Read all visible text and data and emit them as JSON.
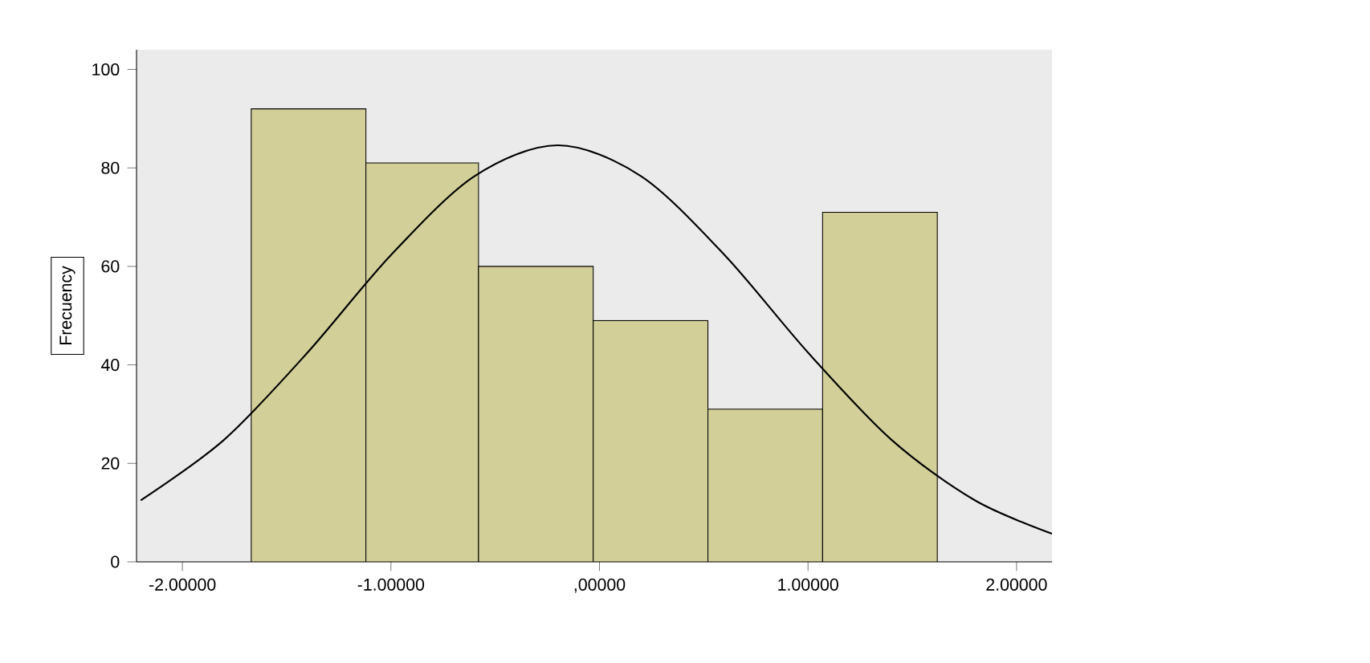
{
  "chart_data": {
    "type": "histogram",
    "ylabel": "Frecuency",
    "bins": [
      -1.67,
      -1.12,
      -0.58,
      -0.03,
      0.52,
      1.07,
      1.62
    ],
    "values": [
      92,
      81,
      60,
      49,
      31,
      71
    ],
    "color": "#d3cf98",
    "xlim": [
      -2.22,
      2.17
    ],
    "ylim": [
      0,
      104
    ],
    "xticks": [
      {
        "value": -2,
        "label": "-2.00000"
      },
      {
        "value": -1,
        "label": "-1.00000"
      },
      {
        "value": 0,
        "label": ",00000"
      },
      {
        "value": 1,
        "label": "1.00000"
      },
      {
        "value": 2,
        "label": "2.00000"
      }
    ],
    "yticks": [
      0,
      20,
      40,
      60,
      80,
      100
    ],
    "grid": false,
    "series": [
      {
        "type": "line",
        "color": "#000000",
        "x": [
          -2.2,
          -1.8,
          -1.4,
          -1.0,
          -0.6,
          -0.2,
          0.2,
          0.6,
          1.0,
          1.4,
          1.8,
          2.17
        ],
        "values": [
          12.5,
          24.8,
          42.5,
          62.3,
          78.3,
          84.6,
          78.3,
          62.3,
          42.5,
          24.8,
          12.5,
          5.7
        ]
      }
    ]
  }
}
